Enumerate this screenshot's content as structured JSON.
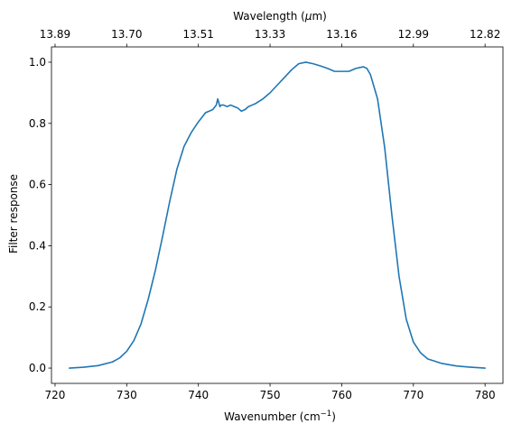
{
  "chart_data": {
    "type": "line",
    "xlabel": "Wavenumber (cm",
    "xlabel_sup": "−1",
    "xlabel_tail": ")",
    "ylabel": "Filter response",
    "top_xlabel": "Wavelength (",
    "top_xlabel_sym": "μ",
    "top_xlabel_tail": "m)",
    "xlim": [
      719.5,
      782.5
    ],
    "ylim": [
      -0.05,
      1.05
    ],
    "xticks": [
      720,
      730,
      740,
      750,
      760,
      770,
      780
    ],
    "xtick_labels": [
      "720",
      "730",
      "740",
      "750",
      "760",
      "770",
      "780"
    ],
    "yticks": [
      0.0,
      0.2,
      0.4,
      0.6,
      0.8,
      1.0
    ],
    "ytick_labels": [
      "0.0",
      "0.2",
      "0.4",
      "0.6",
      "0.8",
      "1.0"
    ],
    "top_xticks": [
      720,
      730,
      740,
      750,
      760,
      770,
      780
    ],
    "top_xtick_labels": [
      "13.89",
      "13.70",
      "13.51",
      "13.33",
      "13.16",
      "12.99",
      "12.82"
    ],
    "grid": false,
    "line_color": "#1f77b4",
    "series": [
      {
        "x": [
          722,
          724,
          726,
          728,
          729,
          730,
          731,
          732,
          733,
          734,
          735,
          736,
          737,
          738,
          739,
          740,
          740.5,
          741,
          741.5,
          742,
          742.5,
          742.7,
          743,
          743.2,
          743.5,
          744,
          744.5,
          745,
          745.5,
          746,
          746.5,
          747,
          747.5,
          748,
          749,
          750,
          751,
          752,
          753,
          754,
          755,
          756,
          757,
          758,
          759,
          760,
          761,
          762,
          763,
          763.5,
          764,
          765,
          766,
          767,
          768,
          769,
          770,
          771,
          772,
          774,
          776,
          778,
          780
        ],
        "y": [
          0.0,
          0.003,
          0.008,
          0.02,
          0.033,
          0.055,
          0.09,
          0.145,
          0.225,
          0.32,
          0.43,
          0.545,
          0.65,
          0.725,
          0.77,
          0.805,
          0.82,
          0.835,
          0.84,
          0.845,
          0.86,
          0.88,
          0.855,
          0.86,
          0.86,
          0.855,
          0.86,
          0.855,
          0.85,
          0.84,
          0.845,
          0.855,
          0.86,
          0.865,
          0.88,
          0.9,
          0.925,
          0.95,
          0.975,
          0.995,
          1.0,
          0.995,
          0.988,
          0.98,
          0.97,
          0.97,
          0.97,
          0.98,
          0.985,
          0.98,
          0.96,
          0.88,
          0.72,
          0.5,
          0.3,
          0.16,
          0.085,
          0.05,
          0.03,
          0.015,
          0.007,
          0.003,
          0.0
        ]
      }
    ]
  }
}
